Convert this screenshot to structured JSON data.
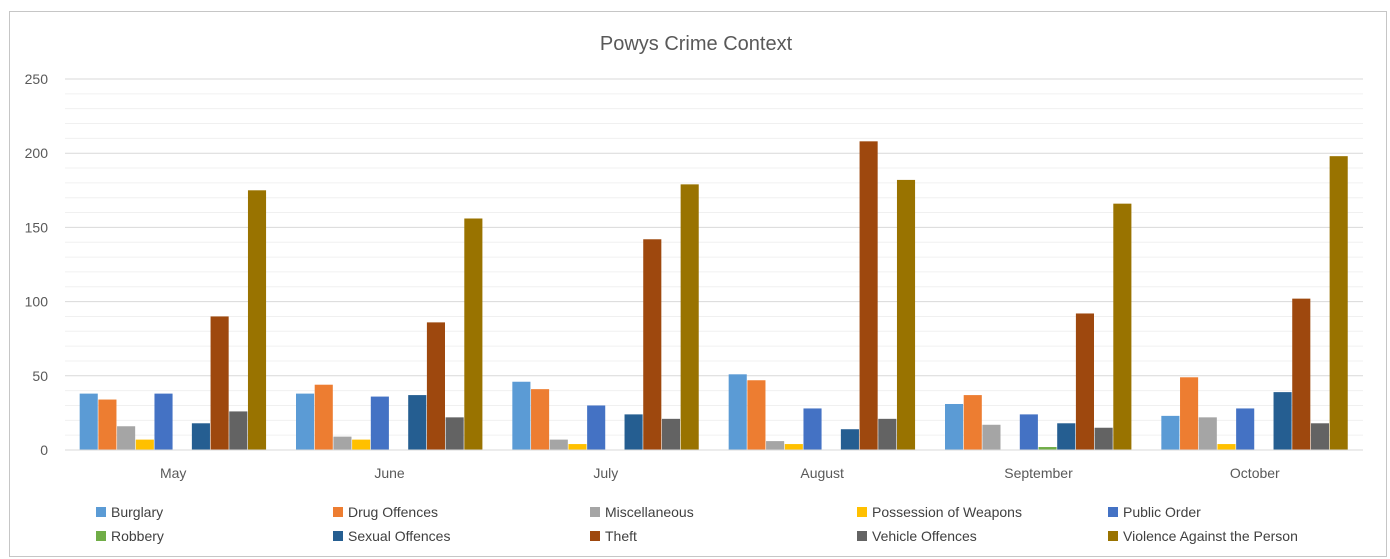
{
  "header_fragment": "",
  "chart_data": {
    "type": "bar",
    "title": "Powys Crime Context",
    "xlabel": "",
    "ylabel": "",
    "ylim": [
      0,
      250
    ],
    "y_ticks": [
      "0",
      "50",
      "100",
      "150",
      "200",
      "250"
    ],
    "grid": true,
    "legend_position": "bottom",
    "categories": [
      "May",
      "June",
      "July",
      "August",
      "September",
      "October"
    ],
    "series": [
      {
        "name": "Burglary",
        "color": "#5B9BD5",
        "values": [
          38,
          38,
          46,
          51,
          31,
          23
        ]
      },
      {
        "name": "Drug Offences",
        "color": "#ED7D31",
        "values": [
          34,
          44,
          41,
          47,
          37,
          49
        ]
      },
      {
        "name": "Miscellaneous",
        "color": "#A5A5A5",
        "values": [
          16,
          9,
          7,
          6,
          17,
          22
        ]
      },
      {
        "name": "Possession of Weapons",
        "color": "#FFC000",
        "values": [
          7,
          7,
          4,
          4,
          0,
          4
        ]
      },
      {
        "name": "Public Order",
        "color": "#4472C4",
        "values": [
          38,
          36,
          30,
          28,
          24,
          28
        ]
      },
      {
        "name": "Robbery",
        "color": "#70AD47",
        "values": [
          0,
          0,
          0,
          0,
          2,
          0
        ]
      },
      {
        "name": "Sexual Offences",
        "color": "#255E91",
        "values": [
          18,
          37,
          24,
          14,
          18,
          39
        ]
      },
      {
        "name": "Theft",
        "color": "#9E480E",
        "values": [
          90,
          86,
          142,
          208,
          92,
          102
        ]
      },
      {
        "name": "Vehicle Offences",
        "color": "#636363",
        "values": [
          26,
          22,
          21,
          21,
          15,
          18
        ]
      },
      {
        "name": "Violence Against the Person",
        "color": "#997300",
        "values": [
          175,
          156,
          179,
          182,
          166,
          198
        ]
      }
    ]
  }
}
